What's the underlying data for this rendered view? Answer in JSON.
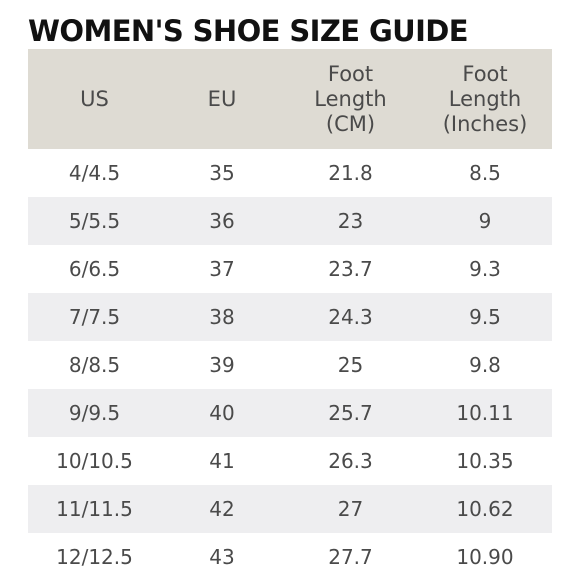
{
  "title": "WOMEN'S SHOE SIZE GUIDE",
  "table": {
    "headers": [
      "US",
      "EU",
      "Foot\nLength\n(CM)",
      "Foot\nLength\n(Inches)"
    ],
    "rows": [
      [
        "4/4.5",
        "35",
        "21.8",
        "8.5"
      ],
      [
        "5/5.5",
        "36",
        "23",
        "9"
      ],
      [
        "6/6.5",
        "37",
        "23.7",
        "9.3"
      ],
      [
        "7/7.5",
        "38",
        "24.3",
        "9.5"
      ],
      [
        "8/8.5",
        "39",
        "25",
        "9.8"
      ],
      [
        "9/9.5",
        "40",
        "25.7",
        "10.11"
      ],
      [
        "10/10.5",
        "41",
        "26.3",
        "10.35"
      ],
      [
        "11/11.5",
        "42",
        "27",
        "10.62"
      ],
      [
        "12/12.5",
        "43",
        "27.7",
        "10.90"
      ]
    ]
  },
  "colors": {
    "header_background": "#dedbd3",
    "stripe_background": "#eeeef0",
    "title_text": "#111111",
    "body_text": "#4a4a4a"
  }
}
